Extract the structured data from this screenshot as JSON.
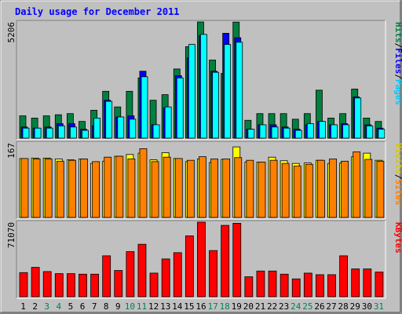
{
  "chart_data": [
    {
      "type": "bar",
      "title": "Daily usage for December 2011",
      "categories": [
        "1",
        "2",
        "3",
        "4",
        "5",
        "6",
        "7",
        "8",
        "9",
        "10",
        "11",
        "12",
        "13",
        "14",
        "15",
        "16",
        "17",
        "18",
        "19",
        "20",
        "21",
        "22",
        "23",
        "24",
        "25",
        "26",
        "27",
        "28",
        "29",
        "30",
        "31"
      ],
      "weekend_days": [
        "3",
        "4",
        "10",
        "11",
        "17",
        "18",
        "24",
        "25",
        "31"
      ],
      "ymax_label": "5206",
      "ylim": [
        0,
        5206
      ],
      "legend": {
        "hits": "Hits",
        "files": "Files",
        "pages": "Pages",
        "sep": "/"
      },
      "series": [
        {
          "name": "Hits",
          "color": "#008040",
          "values": [
            1000,
            900,
            1000,
            1050,
            1100,
            750,
            1250,
            2100,
            1400,
            2100,
            2700,
            1700,
            1950,
            3100,
            4100,
            5206,
            3500,
            2900,
            5200,
            800,
            1100,
            1100,
            1100,
            850,
            1100,
            2150,
            900,
            1100,
            2200,
            900,
            750
          ]
        },
        {
          "name": "Files",
          "color": "#0000ff",
          "values": [
            500,
            450,
            500,
            650,
            650,
            400,
            550,
            1700,
            950,
            1000,
            3000,
            600,
            1350,
            2800,
            3600,
            4600,
            3000,
            4700,
            4500,
            400,
            600,
            600,
            500,
            400,
            600,
            750,
            600,
            650,
            1850,
            600,
            450
          ]
        },
        {
          "name": "Pages",
          "color": "#00ffff",
          "values": [
            450,
            450,
            450,
            550,
            500,
            350,
            900,
            1650,
            950,
            850,
            2750,
            600,
            1400,
            2700,
            4200,
            4650,
            2950,
            4200,
            4300,
            400,
            600,
            500,
            450,
            350,
            650,
            750,
            600,
            600,
            1800,
            550,
            400
          ]
        }
      ]
    },
    {
      "type": "bar",
      "ymax_label": "167",
      "ylim": [
        0,
        167
      ],
      "legend": {
        "visits": "Visits",
        "sites": "Sites",
        "sep": "/"
      },
      "series": [
        {
          "name": "Visits",
          "color": "#ffff00",
          "values": [
            132,
            133,
            133,
            131,
            129,
            131,
            121,
            126,
            137,
            141,
            144,
            129,
            145,
            132,
            125,
            131,
            123,
            130,
            158,
            124,
            124,
            135,
            127,
            121,
            122,
            128,
            121,
            122,
            136,
            144,
            128
          ]
        },
        {
          "name": "Sites",
          "color": "#ff8000",
          "values": [
            132,
            131,
            131,
            126,
            128,
            131,
            125,
            135,
            137,
            131,
            154,
            125,
            135,
            132,
            128,
            136,
            131,
            131,
            134,
            128,
            124,
            128,
            121,
            115,
            119,
            128,
            131,
            126,
            147,
            130,
            126
          ]
        }
      ]
    },
    {
      "type": "bar",
      "ymax_label": "71070",
      "ylim": [
        0,
        71070
      ],
      "legend": {
        "kbytes": "KBytes"
      },
      "series": [
        {
          "name": "KBytes",
          "color": "#ff0000",
          "values": [
            23000,
            28000,
            24000,
            22000,
            22000,
            21500,
            21500,
            39000,
            25000,
            43000,
            50000,
            22500,
            36000,
            42000,
            58000,
            71070,
            44000,
            68000,
            70000,
            19000,
            24500,
            24500,
            21500,
            17000,
            22500,
            21000,
            21000,
            39000,
            26500,
            26500,
            23500
          ]
        }
      ]
    }
  ],
  "colors": {
    "title": "#0000ff",
    "weekday_label": "#000000",
    "weekend_label": "#00805c",
    "panel_bg": "#c0c0c0"
  }
}
